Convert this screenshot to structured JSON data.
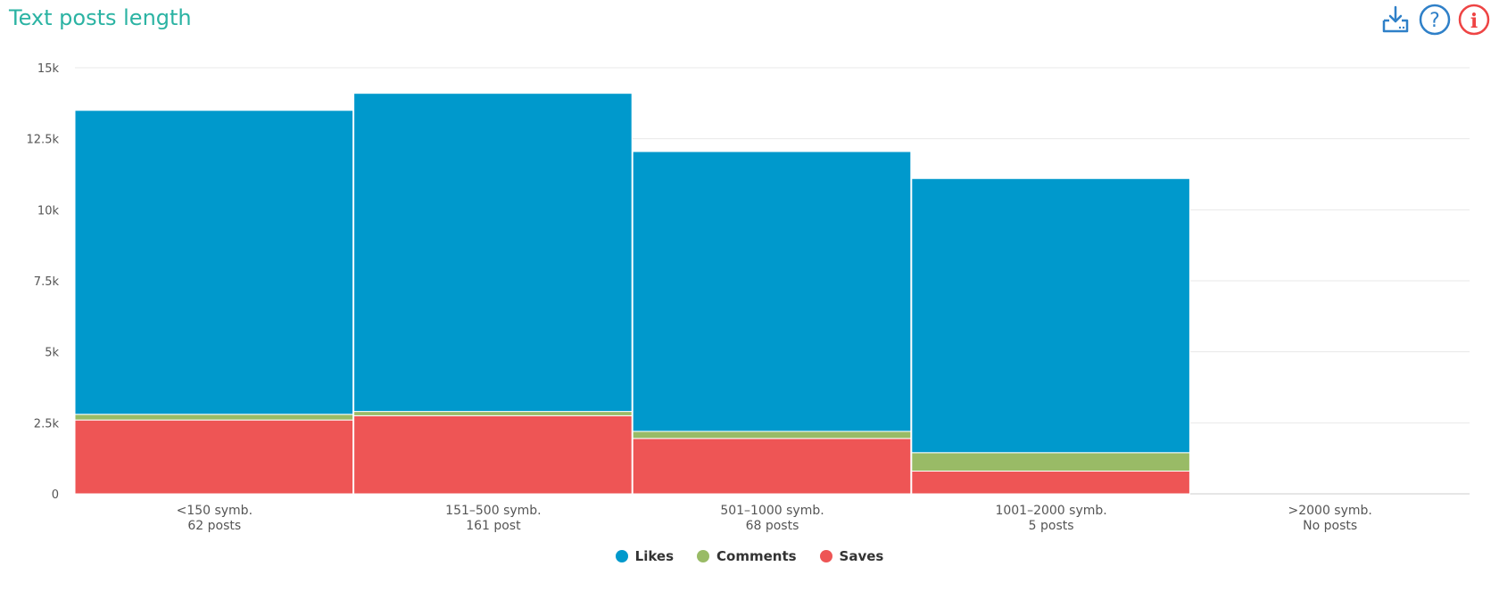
{
  "header": {
    "title": "Text posts length",
    "icons": [
      "download-icon",
      "help-icon",
      "info-icon"
    ]
  },
  "colors": {
    "title": "#2bb3a3",
    "likes": "#0099cc",
    "comments": "#99bb66",
    "saves": "#ee5555",
    "icon_blue": "#2f80c8",
    "icon_red": "#ee4444"
  },
  "chart_data": {
    "type": "bar",
    "stacked": true,
    "categories": [
      {
        "label": "<150 symb.",
        "sub": "62 posts"
      },
      {
        "label": "151–500 symb.",
        "sub": "161 post"
      },
      {
        "label": "501–1000 symb.",
        "sub": "68 posts"
      },
      {
        "label": "1001–2000 symb.",
        "sub": "5 posts"
      },
      {
        "label": ">2000 symb.",
        "sub": "No posts"
      }
    ],
    "series": [
      {
        "name": "Saves",
        "color": "#ee5555",
        "values": [
          2600,
          2750,
          1950,
          800,
          0
        ]
      },
      {
        "name": "Comments",
        "color": "#99bb66",
        "values": [
          200,
          150,
          250,
          650,
          0
        ]
      },
      {
        "name": "Likes",
        "color": "#0099cc",
        "values": [
          10700,
          11200,
          9850,
          9650,
          0
        ]
      }
    ],
    "legend_order": [
      "Likes",
      "Comments",
      "Saves"
    ],
    "yticks": [
      "0",
      "2.5k",
      "5k",
      "7.5k",
      "10k",
      "12.5k",
      "15k"
    ],
    "ylim": [
      0,
      15000
    ],
    "grid": true,
    "legend_position": "bottom"
  }
}
